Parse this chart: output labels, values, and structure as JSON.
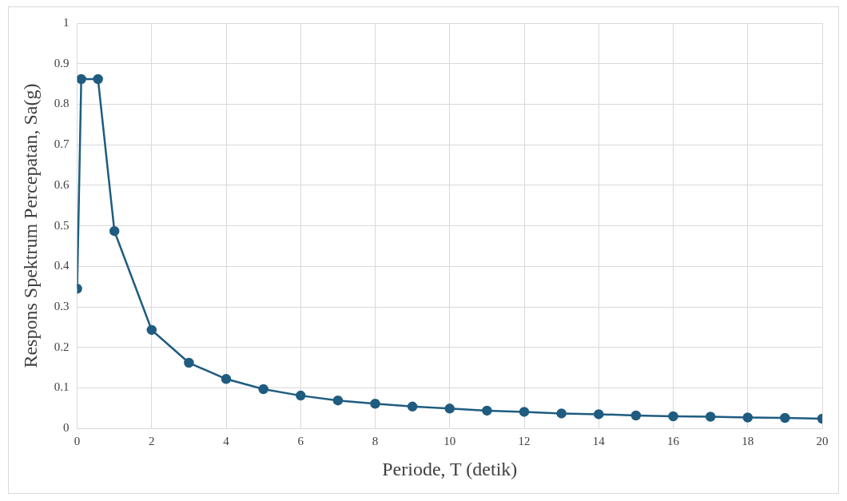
{
  "chart_data": {
    "type": "line",
    "xlabel": "Periode, T (detik)",
    "ylabel": "Respons Spektrum Percepatan, Sa(g)",
    "x": [
      0,
      0.11,
      0.56,
      1,
      2,
      3,
      4,
      5,
      6,
      7,
      8,
      9,
      10,
      11,
      12,
      13,
      14,
      15,
      16,
      17,
      18,
      19,
      20
    ],
    "series": [
      {
        "color": "#1f5c80",
        "values": [
          0.345,
          0.862,
          0.862,
          0.487,
          0.243,
          0.162,
          0.122,
          0.097,
          0.081,
          0.069,
          0.061,
          0.054,
          0.049,
          0.044,
          0.041,
          0.037,
          0.035,
          0.032,
          0.03,
          0.029,
          0.027,
          0.026,
          0.024
        ]
      }
    ],
    "xlim": [
      0,
      20
    ],
    "xticks": [
      0,
      2,
      4,
      6,
      8,
      10,
      12,
      14,
      16,
      18,
      20
    ],
    "ylim": [
      0,
      1
    ],
    "yticks": [
      0,
      0.1,
      0.2,
      0.3,
      0.4,
      0.5,
      0.6,
      0.7,
      0.8,
      0.9,
      1
    ],
    "grid": true,
    "legend": false,
    "marker": "circle",
    "line_style": "solid"
  }
}
